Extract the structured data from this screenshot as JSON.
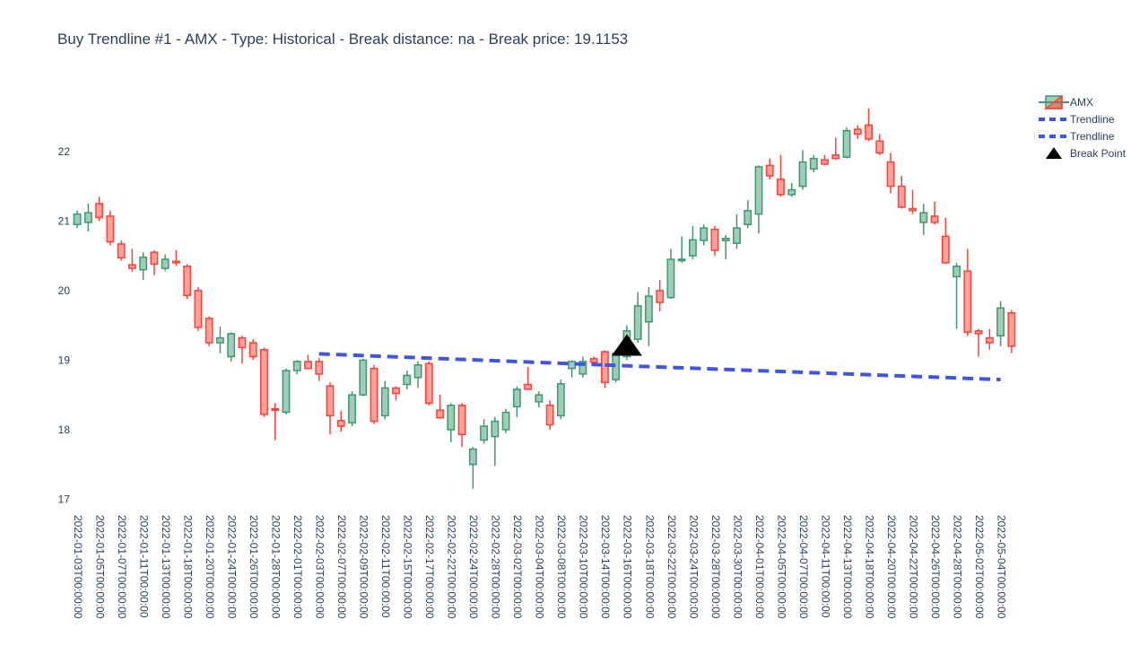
{
  "title": "Buy Trendline #1 - AMX - Type: Historical - Break distance: na - Break price: 19.1153",
  "chart_data": {
    "type": "candlestick",
    "title": "Buy Trendline #1 - AMX - Type: Historical - Break distance: na - Break price: 19.1153",
    "ylim": [
      16.85,
      22.85
    ],
    "yticks": [
      17,
      18,
      19,
      20,
      21,
      22
    ],
    "grid": false,
    "legend_placement": "top-right",
    "colors": {
      "increasing": "#3D9970",
      "decreasing": "#FF4136",
      "trendline": "#4055e0",
      "break": "#000000"
    },
    "dates": [
      "2022-01-03",
      "2022-01-04",
      "2022-01-05",
      "2022-01-06",
      "2022-01-07",
      "2022-01-10",
      "2022-01-11",
      "2022-01-12",
      "2022-01-13",
      "2022-01-14",
      "2022-01-18",
      "2022-01-19",
      "2022-01-20",
      "2022-01-21",
      "2022-01-24",
      "2022-01-25",
      "2022-01-26",
      "2022-01-27",
      "2022-01-28",
      "2022-01-31",
      "2022-02-01",
      "2022-02-02",
      "2022-02-03",
      "2022-02-04",
      "2022-02-07",
      "2022-02-08",
      "2022-02-09",
      "2022-02-10",
      "2022-02-11",
      "2022-02-14",
      "2022-02-15",
      "2022-02-16",
      "2022-02-17",
      "2022-02-18",
      "2022-02-22",
      "2022-02-23",
      "2022-02-24",
      "2022-02-25",
      "2022-02-28",
      "2022-03-01",
      "2022-03-02",
      "2022-03-03",
      "2022-03-04",
      "2022-03-07",
      "2022-03-08",
      "2022-03-09",
      "2022-03-10",
      "2022-03-11",
      "2022-03-14",
      "2022-03-15",
      "2022-03-16",
      "2022-03-17",
      "2022-03-18",
      "2022-03-21",
      "2022-03-22",
      "2022-03-23",
      "2022-03-24",
      "2022-03-25",
      "2022-03-28",
      "2022-03-29",
      "2022-03-30",
      "2022-03-31",
      "2022-04-01",
      "2022-04-04",
      "2022-04-05",
      "2022-04-06",
      "2022-04-07",
      "2022-04-08",
      "2022-04-11",
      "2022-04-12",
      "2022-04-13",
      "2022-04-14",
      "2022-04-18",
      "2022-04-19",
      "2022-04-20",
      "2022-04-21",
      "2022-04-22",
      "2022-04-25",
      "2022-04-26",
      "2022-04-27",
      "2022-04-28",
      "2022-04-29",
      "2022-05-02",
      "2022-05-03",
      "2022-05-04",
      "2022-05-05"
    ],
    "tick_labels": [
      "2022-01-03T00:00:00",
      "2022-01-05T00:00:00",
      "2022-01-07T00:00:00",
      "2022-01-11T00:00:00",
      "2022-01-13T00:00:00",
      "2022-01-18T00:00:00",
      "2022-01-20T00:00:00",
      "2022-01-24T00:00:00",
      "2022-01-26T00:00:00",
      "2022-01-28T00:00:00",
      "2022-02-01T00:00:00",
      "2022-02-03T00:00:00",
      "2022-02-07T00:00:00",
      "2022-02-09T00:00:00",
      "2022-02-11T00:00:00",
      "2022-02-15T00:00:00",
      "2022-02-17T00:00:00",
      "2022-02-22T00:00:00",
      "2022-02-24T00:00:00",
      "2022-02-28T00:00:00",
      "2022-03-02T00:00:00",
      "2022-03-04T00:00:00",
      "2022-03-08T00:00:00",
      "2022-03-10T00:00:00",
      "2022-03-14T00:00:00",
      "2022-03-16T00:00:00",
      "2022-03-18T00:00:00",
      "2022-03-22T00:00:00",
      "2022-03-24T00:00:00",
      "2022-03-28T00:00:00",
      "2022-03-30T00:00:00",
      "2022-04-01T00:00:00",
      "2022-04-05T00:00:00",
      "2022-04-07T00:00:00",
      "2022-04-11T00:00:00",
      "2022-04-13T00:00:00",
      "2022-04-18T00:00:00",
      "2022-04-20T00:00:00",
      "2022-04-22T00:00:00",
      "2022-04-26T00:00:00",
      "2022-04-28T00:00:00",
      "2022-05-02T00:00:00",
      "2022-05-04T00:00:00"
    ],
    "ohlc": [
      [
        20.95,
        21.15,
        20.9,
        21.1
      ],
      [
        20.98,
        21.25,
        20.85,
        21.12
      ],
      [
        21.25,
        21.35,
        21.0,
        21.05
      ],
      [
        21.07,
        21.15,
        20.65,
        20.7
      ],
      [
        20.67,
        20.72,
        20.43,
        20.47
      ],
      [
        20.37,
        20.6,
        20.27,
        20.32
      ],
      [
        20.3,
        20.55,
        20.15,
        20.48
      ],
      [
        20.55,
        20.58,
        20.22,
        20.38
      ],
      [
        20.32,
        20.52,
        20.28,
        20.45
      ],
      [
        20.42,
        20.58,
        20.35,
        20.4
      ],
      [
        20.35,
        20.38,
        19.88,
        19.93
      ],
      [
        20.0,
        20.05,
        19.42,
        19.47
      ],
      [
        19.6,
        19.63,
        19.2,
        19.25
      ],
      [
        19.25,
        19.48,
        19.1,
        19.32
      ],
      [
        19.05,
        19.4,
        18.98,
        19.38
      ],
      [
        19.32,
        19.35,
        18.95,
        19.18
      ],
      [
        19.25,
        19.3,
        19.0,
        19.05
      ],
      [
        19.15,
        19.18,
        18.18,
        18.22
      ],
      [
        18.3,
        18.38,
        17.85,
        18.28
      ],
      [
        18.25,
        18.88,
        18.22,
        18.85
      ],
      [
        18.85,
        19.0,
        18.8,
        18.98
      ],
      [
        18.98,
        19.08,
        18.88,
        18.88
      ],
      [
        18.98,
        19.03,
        18.7,
        18.8
      ],
      [
        18.63,
        18.68,
        17.93,
        18.2
      ],
      [
        18.13,
        18.27,
        17.97,
        18.05
      ],
      [
        18.1,
        18.55,
        18.05,
        18.5
      ],
      [
        18.5,
        19.02,
        18.48,
        19.0
      ],
      [
        18.88,
        18.93,
        18.08,
        18.12
      ],
      [
        18.2,
        18.7,
        18.15,
        18.6
      ],
      [
        18.6,
        18.62,
        18.42,
        18.52
      ],
      [
        18.65,
        18.85,
        18.58,
        18.78
      ],
      [
        18.75,
        18.98,
        18.6,
        18.93
      ],
      [
        18.95,
        18.98,
        18.35,
        18.38
      ],
      [
        18.28,
        18.5,
        18.17,
        18.17
      ],
      [
        18.0,
        18.38,
        17.82,
        18.35
      ],
      [
        18.35,
        18.38,
        17.75,
        17.93
      ],
      [
        17.5,
        17.75,
        17.15,
        17.72
      ],
      [
        17.85,
        18.15,
        17.8,
        18.05
      ],
      [
        17.9,
        18.18,
        17.48,
        18.12
      ],
      [
        18.0,
        18.3,
        17.95,
        18.25
      ],
      [
        18.33,
        18.62,
        18.18,
        18.58
      ],
      [
        18.65,
        18.9,
        18.58,
        18.58
      ],
      [
        18.4,
        18.55,
        18.32,
        18.5
      ],
      [
        18.35,
        18.42,
        18.0,
        18.07
      ],
      [
        18.2,
        18.72,
        18.15,
        18.66
      ],
      [
        18.88,
        19.0,
        18.75,
        18.98
      ],
      [
        18.8,
        19.05,
        18.75,
        18.98
      ],
      [
        19.02,
        19.05,
        18.95,
        18.97
      ],
      [
        19.12,
        19.14,
        18.6,
        18.68
      ],
      [
        18.72,
        19.1,
        18.68,
        19.1
      ],
      [
        19.05,
        19.5,
        19.0,
        19.42
      ],
      [
        19.3,
        19.98,
        19.25,
        19.78
      ],
      [
        19.55,
        20.05,
        19.2,
        19.92
      ],
      [
        20.0,
        20.15,
        19.7,
        19.83
      ],
      [
        19.9,
        20.6,
        19.88,
        20.45
      ],
      [
        20.45,
        20.78,
        20.4,
        20.45
      ],
      [
        20.5,
        20.93,
        20.45,
        20.73
      ],
      [
        20.72,
        20.95,
        20.65,
        20.9
      ],
      [
        20.88,
        20.93,
        20.5,
        20.58
      ],
      [
        20.72,
        20.8,
        20.45,
        20.75
      ],
      [
        20.68,
        21.1,
        20.6,
        20.9
      ],
      [
        20.95,
        21.3,
        20.9,
        21.15
      ],
      [
        21.1,
        21.8,
        20.82,
        21.78
      ],
      [
        21.8,
        21.9,
        21.6,
        21.65
      ],
      [
        21.6,
        21.95,
        21.35,
        21.38
      ],
      [
        21.38,
        21.55,
        21.35,
        21.45
      ],
      [
        21.5,
        22.02,
        21.45,
        21.85
      ],
      [
        21.75,
        21.95,
        21.7,
        21.9
      ],
      [
        21.88,
        21.95,
        21.8,
        21.82
      ],
      [
        21.95,
        22.2,
        21.88,
        21.9
      ],
      [
        21.92,
        22.35,
        21.9,
        22.3
      ],
      [
        22.32,
        22.38,
        22.18,
        22.25
      ],
      [
        22.38,
        22.62,
        22.15,
        22.18
      ],
      [
        22.15,
        22.25,
        21.95,
        21.98
      ],
      [
        21.85,
        21.98,
        21.4,
        21.5
      ],
      [
        21.5,
        21.65,
        21.18,
        21.2
      ],
      [
        21.18,
        21.45,
        21.1,
        21.15
      ],
      [
        20.98,
        21.25,
        20.8,
        21.12
      ],
      [
        21.07,
        21.28,
        20.95,
        20.98
      ],
      [
        20.78,
        21.05,
        20.38,
        20.4
      ],
      [
        20.2,
        20.4,
        19.45,
        20.35
      ],
      [
        20.28,
        20.6,
        19.35,
        19.4
      ],
      [
        19.42,
        19.45,
        19.05,
        19.38
      ],
      [
        19.32,
        19.45,
        19.15,
        19.25
      ],
      [
        19.35,
        19.85,
        19.2,
        19.75
      ],
      [
        19.68,
        19.72,
        19.1,
        19.2
      ]
    ],
    "series": [
      {
        "name": "AMX",
        "kind": "candlestick"
      },
      {
        "name": "Trendline",
        "kind": "line",
        "x": [
          "2022-02-03",
          "2022-03-14"
        ],
        "y": [
          19.09,
          18.93
        ]
      },
      {
        "name": "Trendline",
        "kind": "line",
        "x": [
          "2022-03-14",
          "2022-05-04"
        ],
        "y": [
          18.93,
          18.72
        ]
      },
      {
        "name": "Break Point",
        "kind": "marker",
        "x": "2022-03-16",
        "y": 19.1153
      }
    ],
    "legend": [
      "AMX",
      "Trendline",
      "Trendline",
      "Break Point"
    ]
  }
}
